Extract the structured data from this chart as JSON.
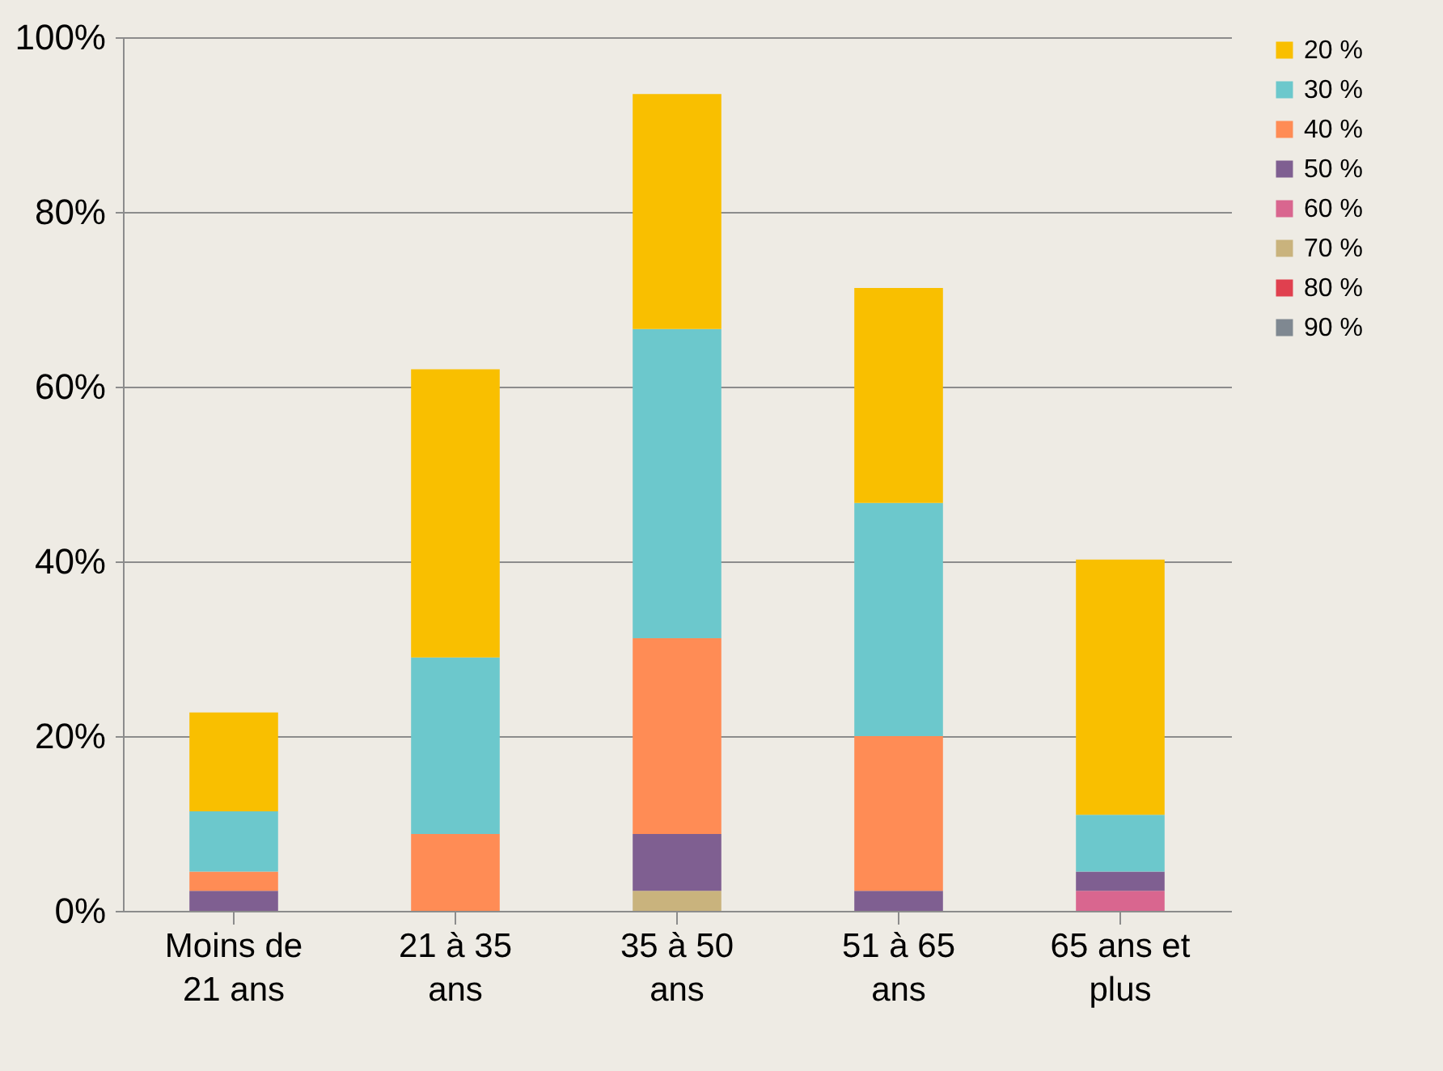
{
  "chart_data": {
    "type": "bar",
    "stacked": true,
    "categories": [
      "Moins de 21 ans",
      "21 à 35 ans",
      "35 à 50 ans",
      "51 à 65 ans",
      "65 ans et plus"
    ],
    "series": [
      {
        "name": "90 %",
        "color": "#7f8891",
        "values": [
          null,
          null,
          null,
          null,
          null
        ]
      },
      {
        "name": "80 %",
        "color": "#e0404f",
        "values": [
          null,
          null,
          null,
          null,
          null
        ]
      },
      {
        "name": "70 %",
        "color": "#c9b37d",
        "values": [
          null,
          null,
          2.3,
          null,
          null
        ]
      },
      {
        "name": "60 %",
        "color": "#d9668f",
        "values": [
          null,
          null,
          null,
          null,
          2.3
        ]
      },
      {
        "name": "50 %",
        "color": "#7f5f91",
        "values": [
          2.3,
          null,
          6.5,
          2.3,
          2.2
        ]
      },
      {
        "name": "40 %",
        "color": "#ff8c55",
        "values": [
          2.2,
          8.8,
          22.4,
          17.7,
          null
        ]
      },
      {
        "name": "30 %",
        "color": "#6cc8cc",
        "values": [
          6.9,
          20.2,
          35.4,
          26.7,
          6.5
        ]
      },
      {
        "name": "20 %",
        "color": "#f9bf00",
        "values": [
          11.3,
          33.0,
          26.9,
          24.6,
          29.2
        ]
      }
    ],
    "ylim": [
      0,
      100
    ],
    "yticks": [
      {
        "value": 0,
        "label": "0%"
      },
      {
        "value": 20,
        "label": "20%"
      },
      {
        "value": 40,
        "label": "40%"
      },
      {
        "value": 60,
        "label": "60%"
      },
      {
        "value": 80,
        "label": "80%"
      },
      {
        "value": 100,
        "label": "100%"
      }
    ],
    "grid": "y",
    "legend": "right"
  }
}
